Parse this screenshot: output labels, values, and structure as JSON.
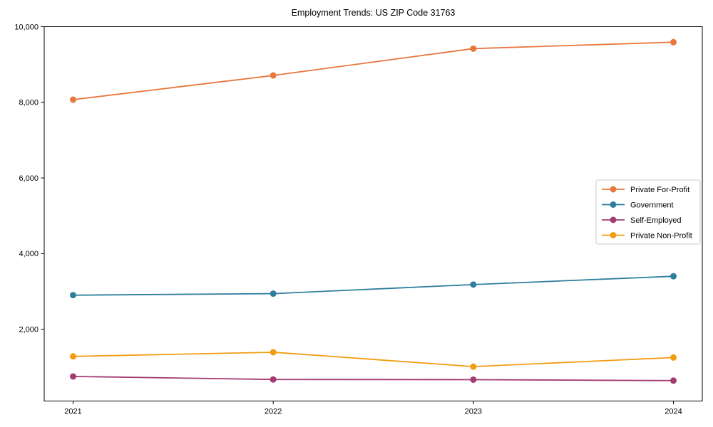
{
  "figure": {
    "background_color": "#ffffff",
    "plot_border_color": "#000000"
  },
  "chart_data": {
    "type": "line",
    "title": "Employment Trends: US ZIP Code 31763",
    "xlabel": "",
    "ylabel": "",
    "x": [
      2021,
      2022,
      2023,
      2024
    ],
    "x_tick_labels": [
      "2021",
      "2022",
      "2023",
      "2024"
    ],
    "y_ticks": [
      2000,
      4000,
      6000,
      8000,
      10000
    ],
    "y_tick_labels": [
      "2,000",
      "4,000",
      "6,000",
      "8,000",
      "10,000"
    ],
    "ylim": [
      100,
      10000
    ],
    "grid": false,
    "marker": "circle",
    "legend_position": "center-right",
    "legend_border_color": "#cccccc",
    "series": [
      {
        "name": "Private For-Profit",
        "color": "#e8773d",
        "values": [
          8070,
          8710,
          9420,
          9590
        ]
      },
      {
        "name": "Government",
        "color": "#2e7e9e",
        "values": [
          2900,
          2940,
          3180,
          3400
        ]
      },
      {
        "name": "Self-Employed",
        "color": "#a23b72",
        "values": [
          750,
          670,
          665,
          640
        ]
      },
      {
        "name": "Private Non-Profit",
        "color": "#f29c11",
        "values": [
          1280,
          1390,
          1010,
          1250
        ]
      }
    ]
  }
}
